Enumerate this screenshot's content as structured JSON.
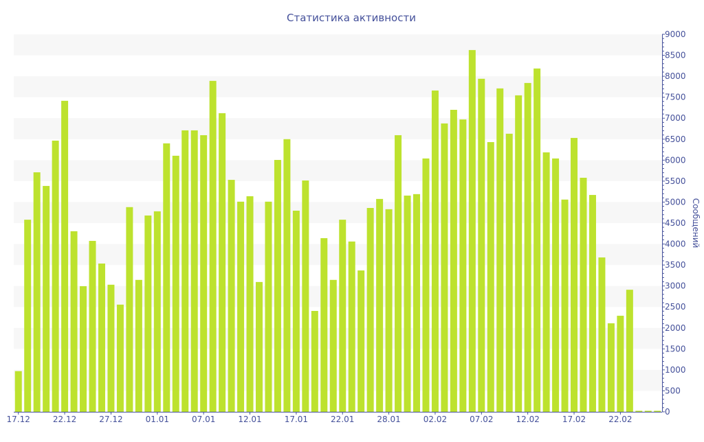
{
  "chart_data": {
    "type": "bar",
    "title": "Статистика активности",
    "xlabel": "",
    "ylabel": "Сообщений",
    "ylim": [
      0,
      9000
    ],
    "y_ticks": [
      0,
      500,
      1000,
      1500,
      2000,
      2500,
      3000,
      3500,
      4000,
      4500,
      5000,
      5500,
      6000,
      6500,
      7000,
      7500,
      8000,
      8500,
      9000
    ],
    "y_axis_side": "right",
    "grid": "alternating horizontal bands",
    "x_tick_labels": [
      {
        "bar": 0,
        "label": "17.12"
      },
      {
        "bar": 5,
        "label": "22.12"
      },
      {
        "bar": 10,
        "label": "27.12"
      },
      {
        "bar": 15,
        "label": "01.01"
      },
      {
        "bar": 20,
        "label": "07.01"
      },
      {
        "bar": 25,
        "label": "12.01"
      },
      {
        "bar": 30,
        "label": "17.01"
      },
      {
        "bar": 35,
        "label": "22.01"
      },
      {
        "bar": 40,
        "label": "28.01"
      },
      {
        "bar": 45,
        "label": "02.02"
      },
      {
        "bar": 50,
        "label": "07.02"
      },
      {
        "bar": 55,
        "label": "12.02"
      },
      {
        "bar": 60,
        "label": "17.02"
      },
      {
        "bar": 65,
        "label": "22.02"
      }
    ],
    "values": [
      970,
      4580,
      5710,
      5385,
      6465,
      7415,
      4305,
      2995,
      4075,
      3535,
      3030,
      2555,
      4880,
      3145,
      4680,
      4780,
      6400,
      6105,
      6710,
      6710,
      6595,
      7890,
      7120,
      5530,
      5010,
      5140,
      3095,
      5010,
      6005,
      6500,
      4795,
      5515,
      2405,
      4140,
      3145,
      4580,
      4060,
      3370,
      4860,
      5075,
      4830,
      6595,
      5155,
      5190,
      6040,
      7660,
      6875,
      7200,
      6970,
      8625,
      7940,
      6430,
      7710,
      6630,
      7545,
      7840,
      8185,
      6185,
      6040,
      5060,
      6530,
      5580,
      5170,
      3680,
      2110,
      2290,
      2910,
      20,
      20,
      20
    ],
    "colors": {
      "bar": "#bde22e",
      "axis": "#44509a",
      "band": "#f7f7f7"
    }
  }
}
